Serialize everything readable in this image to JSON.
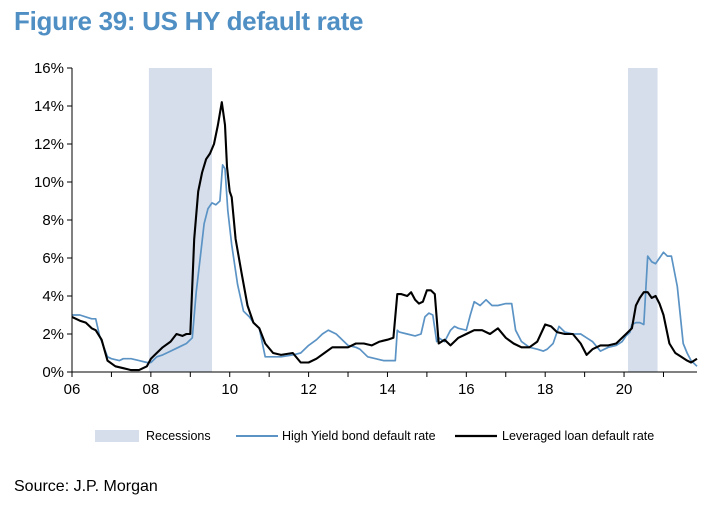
{
  "title": "Figure 39: US HY default rate",
  "source": "Source: J.P. Morgan",
  "chart_data": {
    "type": "line",
    "title": "Figure 39: US HY default rate",
    "xlabel": "",
    "ylabel": "",
    "xlim": [
      2006.0,
      2021.85
    ],
    "ylim": [
      0,
      16
    ],
    "x_ticks": [
      2006,
      2008,
      2010,
      2012,
      2014,
      2016,
      2018,
      2020
    ],
    "x_tick_labels": [
      "06",
      "08",
      "10",
      "12",
      "14",
      "16",
      "18",
      "20"
    ],
    "y_ticks": [
      0,
      2,
      4,
      6,
      8,
      10,
      12,
      14,
      16
    ],
    "y_tick_labels": [
      "0%",
      "2%",
      "4%",
      "6%",
      "8%",
      "10%",
      "12%",
      "14%",
      "16%"
    ],
    "grid": false,
    "legend_position": "bottom",
    "recessions": {
      "name": "Recessions",
      "color": "#d6deeb",
      "periods": [
        [
          2007.95,
          2009.55
        ],
        [
          2020.1,
          2020.85
        ]
      ]
    },
    "series": [
      {
        "name": "High Yield bond default rate",
        "color": "#5b93c5",
        "x": [
          2006.0,
          2006.2,
          2006.35,
          2006.5,
          2006.6,
          2006.7,
          2006.9,
          2007.0,
          2007.2,
          2007.3,
          2007.5,
          2007.7,
          2007.9,
          2008.0,
          2008.15,
          2008.3,
          2008.5,
          2008.7,
          2008.9,
          2009.05,
          2009.15,
          2009.25,
          2009.35,
          2009.45,
          2009.55,
          2009.65,
          2009.75,
          2009.82,
          2009.88,
          2009.95,
          2010.05,
          2010.2,
          2010.35,
          2010.5,
          2010.6,
          2010.75,
          2010.9,
          2011.0,
          2011.3,
          2011.6,
          2011.8,
          2012.0,
          2012.2,
          2012.35,
          2012.5,
          2012.7,
          2012.9,
          2013.0,
          2013.2,
          2013.3,
          2013.5,
          2013.7,
          2013.9,
          2014.0,
          2014.2,
          2014.25,
          2014.3,
          2014.5,
          2014.7,
          2014.85,
          2014.95,
          2015.05,
          2015.15,
          2015.25,
          2015.3,
          2015.45,
          2015.6,
          2015.7,
          2015.8,
          2016.0,
          2016.1,
          2016.2,
          2016.35,
          2016.5,
          2016.65,
          2016.8,
          2017.0,
          2017.15,
          2017.25,
          2017.4,
          2017.6,
          2017.8,
          2017.95,
          2018.05,
          2018.2,
          2018.35,
          2018.5,
          2018.7,
          2018.9,
          2019.05,
          2019.2,
          2019.4,
          2019.6,
          2019.8,
          2019.95,
          2020.05,
          2020.15,
          2020.2,
          2020.3,
          2020.4,
          2020.5,
          2020.6,
          2020.7,
          2020.8,
          2020.9,
          2021.0,
          2021.1,
          2021.2,
          2021.35,
          2021.5,
          2021.6,
          2021.7,
          2021.85
        ],
        "values": [
          3.0,
          3.0,
          2.9,
          2.8,
          2.8,
          1.9,
          0.8,
          0.7,
          0.6,
          0.7,
          0.7,
          0.6,
          0.5,
          0.5,
          0.8,
          0.9,
          1.1,
          1.3,
          1.5,
          1.8,
          4.2,
          6.0,
          7.8,
          8.6,
          8.9,
          8.8,
          9.0,
          10.9,
          10.7,
          8.5,
          6.7,
          4.6,
          3.2,
          2.9,
          2.6,
          2.3,
          0.8,
          0.8,
          0.8,
          0.9,
          1.0,
          1.4,
          1.7,
          2.0,
          2.2,
          2.0,
          1.6,
          1.4,
          1.3,
          1.2,
          0.8,
          0.7,
          0.6,
          0.6,
          0.6,
          2.2,
          2.1,
          2.0,
          1.9,
          2.0,
          2.9,
          3.1,
          3.0,
          1.6,
          1.8,
          1.6,
          2.2,
          2.4,
          2.3,
          2.2,
          3.0,
          3.7,
          3.5,
          3.8,
          3.5,
          3.5,
          3.6,
          3.6,
          2.2,
          1.6,
          1.3,
          1.2,
          1.1,
          1.2,
          1.5,
          2.4,
          2.1,
          2.0,
          2.0,
          1.8,
          1.6,
          1.1,
          1.3,
          1.4,
          1.6,
          1.9,
          2.1,
          2.5,
          2.6,
          2.6,
          2.5,
          6.1,
          5.8,
          5.7,
          6.0,
          6.3,
          6.1,
          6.1,
          4.5,
          1.5,
          1.0,
          0.6,
          0.3
        ]
      },
      {
        "name": "Leveraged loan default rate",
        "color": "#000000",
        "x": [
          2006.0,
          2006.2,
          2006.35,
          2006.5,
          2006.6,
          2006.75,
          2006.9,
          2007.1,
          2007.3,
          2007.5,
          2007.7,
          2007.9,
          2008.0,
          2008.1,
          2008.3,
          2008.5,
          2008.65,
          2008.8,
          2008.9,
          2009.0,
          2009.1,
          2009.2,
          2009.3,
          2009.4,
          2009.5,
          2009.6,
          2009.7,
          2009.8,
          2009.88,
          2009.93,
          2010.0,
          2010.05,
          2010.15,
          2010.3,
          2010.45,
          2010.6,
          2010.75,
          2010.9,
          2011.1,
          2011.3,
          2011.6,
          2011.8,
          2012.0,
          2012.2,
          2012.4,
          2012.6,
          2012.8,
          2013.0,
          2013.2,
          2013.4,
          2013.6,
          2013.8,
          2014.0,
          2014.15,
          2014.25,
          2014.35,
          2014.5,
          2014.6,
          2014.7,
          2014.8,
          2014.9,
          2015.0,
          2015.1,
          2015.2,
          2015.3,
          2015.45,
          2015.6,
          2015.8,
          2016.0,
          2016.2,
          2016.4,
          2016.6,
          2016.8,
          2017.0,
          2017.2,
          2017.4,
          2017.6,
          2017.8,
          2018.0,
          2018.15,
          2018.3,
          2018.5,
          2018.7,
          2018.9,
          2019.05,
          2019.2,
          2019.4,
          2019.6,
          2019.8,
          2020.0,
          2020.1,
          2020.2,
          2020.3,
          2020.4,
          2020.5,
          2020.6,
          2020.7,
          2020.8,
          2020.9,
          2021.0,
          2021.15,
          2021.3,
          2021.45,
          2021.6,
          2021.7,
          2021.85
        ],
        "values": [
          2.9,
          2.7,
          2.6,
          2.3,
          2.2,
          1.7,
          0.6,
          0.3,
          0.2,
          0.1,
          0.1,
          0.3,
          0.7,
          0.9,
          1.3,
          1.6,
          2.0,
          1.9,
          2.0,
          2.0,
          7.0,
          9.5,
          10.5,
          11.2,
          11.5,
          12.0,
          13.0,
          14.2,
          13.0,
          10.8,
          9.5,
          9.2,
          7.0,
          5.2,
          3.5,
          2.6,
          2.3,
          1.5,
          1.0,
          0.9,
          1.0,
          0.5,
          0.5,
          0.7,
          1.0,
          1.3,
          1.3,
          1.3,
          1.5,
          1.5,
          1.4,
          1.6,
          1.7,
          1.8,
          4.1,
          4.1,
          4.0,
          4.2,
          3.8,
          3.6,
          3.7,
          4.3,
          4.3,
          4.1,
          1.5,
          1.7,
          1.4,
          1.8,
          2.0,
          2.2,
          2.2,
          2.0,
          2.3,
          1.8,
          1.5,
          1.3,
          1.3,
          1.6,
          2.5,
          2.4,
          2.1,
          2.0,
          2.0,
          1.5,
          0.9,
          1.2,
          1.4,
          1.4,
          1.5,
          1.9,
          2.1,
          2.3,
          3.5,
          3.9,
          4.2,
          4.2,
          3.9,
          4.0,
          3.6,
          3.0,
          1.5,
          1.0,
          0.8,
          0.6,
          0.5,
          0.7
        ]
      }
    ]
  }
}
